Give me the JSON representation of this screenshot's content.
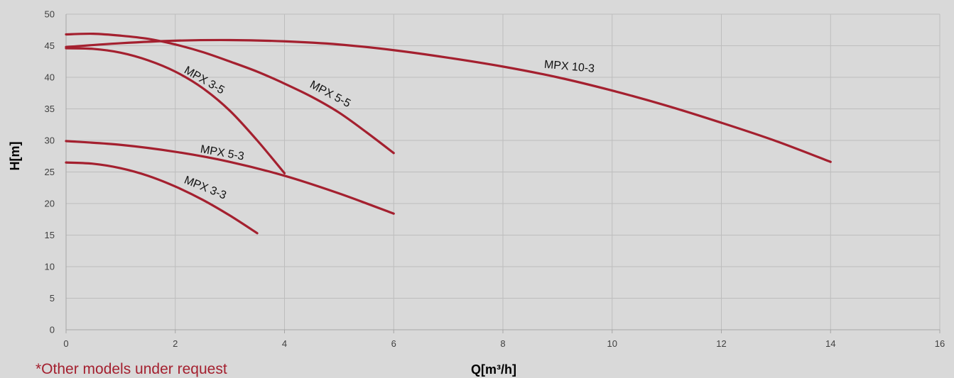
{
  "chart_data": {
    "type": "line",
    "xlabel": "Q[m³/h]",
    "ylabel": "H[m]",
    "xlim": [
      0,
      16
    ],
    "ylim": [
      0,
      50
    ],
    "xticks": [
      0,
      2,
      4,
      6,
      8,
      10,
      12,
      14,
      16
    ],
    "yticks": [
      0,
      5,
      10,
      15,
      20,
      25,
      30,
      35,
      40,
      45,
      50
    ],
    "grid": true,
    "legend": "none",
    "line_color": "#a4202f",
    "series": [
      {
        "name": "MPX 10-3",
        "x": [
          0,
          1,
          2,
          3,
          4,
          5,
          6,
          7,
          8,
          9,
          10,
          11,
          12,
          13,
          14
        ],
        "y": [
          44.8,
          45.4,
          45.8,
          45.9,
          45.7,
          45.2,
          44.3,
          43.1,
          41.7,
          40.0,
          37.9,
          35.5,
          32.8,
          29.9,
          26.6
        ]
      },
      {
        "name": "MPX 5-5",
        "x": [
          0,
          0.5,
          1,
          1.5,
          2,
          2.5,
          3,
          3.5,
          4,
          4.5,
          5,
          5.5,
          6
        ],
        "y": [
          46.8,
          46.9,
          46.6,
          46.1,
          45.2,
          44.0,
          42.5,
          40.9,
          39.0,
          36.9,
          34.4,
          31.3,
          28.0
        ]
      },
      {
        "name": "MPX 3-5",
        "x": [
          0,
          0.5,
          1,
          1.5,
          2,
          2.5,
          3,
          3.5,
          4
        ],
        "y": [
          44.6,
          44.5,
          43.9,
          42.7,
          40.9,
          38.3,
          34.7,
          30.0,
          24.8
        ]
      },
      {
        "name": "MPX 5-3",
        "x": [
          0,
          1,
          2,
          3,
          4,
          5,
          6
        ],
        "y": [
          29.9,
          29.3,
          28.2,
          26.6,
          24.4,
          21.6,
          18.4
        ]
      },
      {
        "name": "MPX 3-3",
        "x": [
          0,
          0.5,
          1,
          1.5,
          2,
          2.5,
          3,
          3.5
        ],
        "y": [
          26.5,
          26.3,
          25.6,
          24.4,
          22.7,
          20.6,
          18.1,
          15.3
        ]
      }
    ],
    "annotations": [
      {
        "text": "MPX 10-3",
        "x": 8.75,
        "y": 41.5,
        "angle": 5
      },
      {
        "text": "MPX 5-5",
        "x": 4.45,
        "y": 38.5,
        "angle": 28
      },
      {
        "text": "MPX 3-5",
        "x": 2.15,
        "y": 40.8,
        "angle": 30
      },
      {
        "text": "MPX 5-3",
        "x": 2.45,
        "y": 28.1,
        "angle": 10
      },
      {
        "text": "MPX 3-3",
        "x": 2.15,
        "y": 23.3,
        "angle": 22
      }
    ]
  },
  "footnote": "*Other models under request"
}
